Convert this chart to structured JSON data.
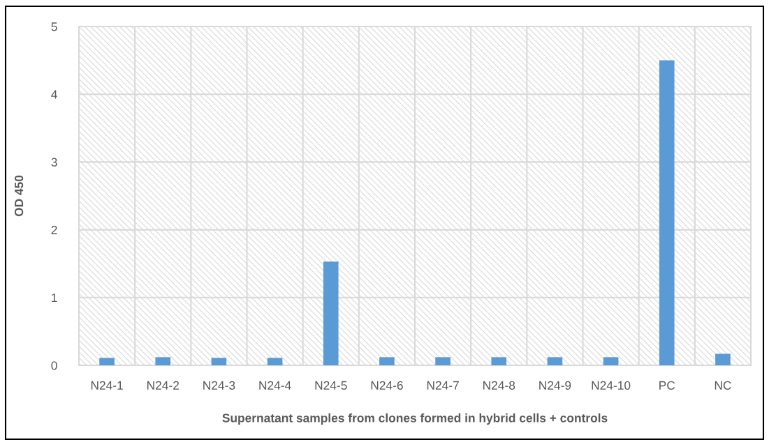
{
  "chart_data": {
    "type": "bar",
    "xlabel": "Supernatant samples from clones formed in hybrid cells + controls",
    "ylabel": "OD 450",
    "categories": [
      "N24-1",
      "N24-2",
      "N24-3",
      "N24-4",
      "N24-5",
      "N24-6",
      "N24-7",
      "N24-8",
      "N24-9",
      "N24-10",
      "PC",
      "NC"
    ],
    "values": [
      0.11,
      0.12,
      0.11,
      0.11,
      1.53,
      0.12,
      0.12,
      0.12,
      0.12,
      0.12,
      4.5,
      0.17
    ],
    "color": "#5b9bd5",
    "ylim": [
      0,
      5
    ],
    "yticks": [
      0,
      1,
      2,
      3,
      4,
      5
    ],
    "grid": true
  }
}
